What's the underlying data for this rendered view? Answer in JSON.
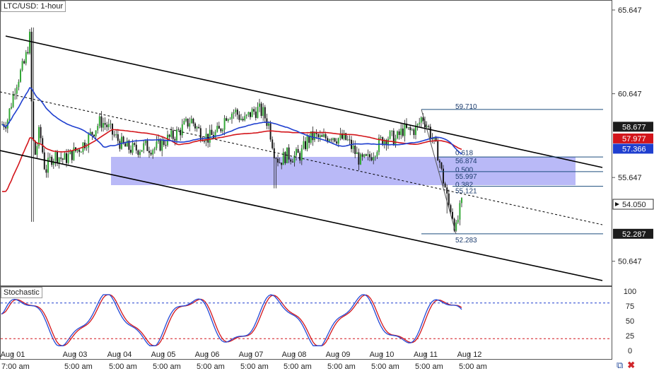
{
  "title": "LTC/USD: 1-hour",
  "indicator_label": "Stochastic",
  "colors": {
    "up_candle": "#34a837",
    "down_candle": "#1a1a1a",
    "sma_fast": "#1f3fcf",
    "sma_slow": "#d3151b",
    "zone": "#7f7ff0",
    "stoch_k": "#2349d6",
    "stoch_d": "#d3151b",
    "channel": "#000000",
    "fib": "#1d4e7e"
  },
  "chart_data": [
    {
      "type": "candlestick",
      "title": "LTC/USD: 1-hour",
      "ylim": [
        49.2,
        66.2
      ],
      "y_ticks": [
        65.647,
        60.647,
        55.647,
        50.647
      ],
      "x_date_labels": [
        "Aug 01",
        "Aug 03",
        "Aug 04",
        "Aug 05",
        "Aug 06",
        "Aug 07",
        "Aug 08",
        "Aug 09",
        "Aug 10",
        "Aug 11",
        "Aug 12"
      ],
      "x_time_labels": [
        "7:00 am",
        "5:00 am",
        "5:00 am",
        "5:00 am",
        "5:00 am",
        "5:00 am",
        "5:00 am",
        "5:00 am",
        "5:00 am",
        "5:00 am",
        "5:00 am"
      ],
      "price_tags": [
        {
          "value": "58.677",
          "style": "dark"
        },
        {
          "value": "57.977",
          "style": "red"
        },
        {
          "value": "57.366",
          "style": "blue"
        },
        {
          "value": "54.050",
          "style": "white"
        },
        {
          "value": "52.287",
          "style": "dark"
        }
      ],
      "fib_levels": [
        {
          "label": "59.710",
          "price": 59.71
        },
        {
          "label": "0.618",
          "price": 57.1
        },
        {
          "label": "56.874",
          "price": 56.874
        },
        {
          "label": "0.500",
          "price": 56.1
        },
        {
          "label": "55.997",
          "price": 55.997
        },
        {
          "label": "0.382",
          "price": 55.3
        },
        {
          "label": "55.121",
          "price": 55.121
        },
        {
          "label": "52.283",
          "price": 52.283
        }
      ],
      "series": [
        {
          "name": "",
          "kind": "sma",
          "color": "sma_fast"
        },
        {
          "name": "",
          "kind": "sma",
          "color": "sma_slow"
        }
      ]
    },
    {
      "type": "line",
      "title": "Stochastic",
      "ylim": [
        0,
        100
      ],
      "y_ticks": [
        100,
        75,
        50,
        25,
        0
      ],
      "levels": [
        80,
        20
      ]
    }
  ]
}
